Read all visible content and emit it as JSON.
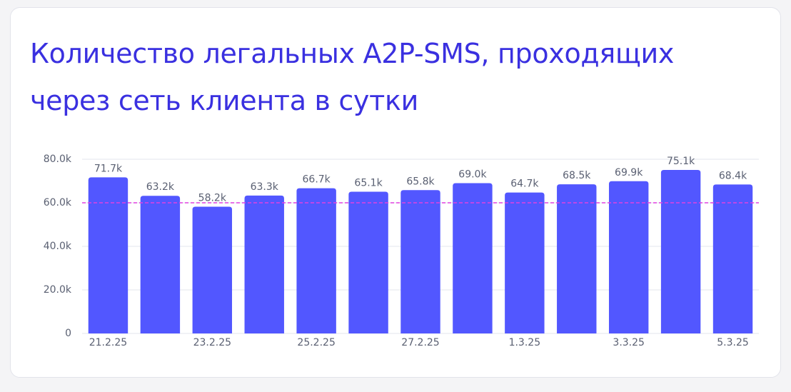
{
  "chart_data": {
    "type": "bar",
    "title": "Количество легальных A2P-SMS, проходящих через сеть клиента в сутки",
    "categories": [
      "21.2.25",
      null,
      "23.2.25",
      null,
      "25.2.25",
      null,
      "27.2.25",
      null,
      "1.3.25",
      null,
      "3.3.25",
      null,
      "5.3.25"
    ],
    "values": [
      71700,
      63200,
      58200,
      63300,
      66700,
      65100,
      65800,
      69000,
      64700,
      68500,
      69900,
      75100,
      68400
    ],
    "value_labels": [
      "71.7k",
      "63.2k",
      "58.2k",
      "63.3k",
      "66.7k",
      "65.1k",
      "65.8k",
      "69.0k",
      "64.7k",
      "68.5k",
      "69.9k",
      "75.1k",
      "68.4k"
    ],
    "color": "#5257ff",
    "ylim": [
      0,
      80000
    ],
    "yticks": [
      0,
      {
        "value": 20000,
        "label": "20.0k"
      },
      {
        "value": 40000,
        "label": "40.0k"
      },
      {
        "value": 60000,
        "label": "60.0k"
      },
      {
        "value": 80000,
        "label": "80.0k"
      }
    ],
    "grid": true,
    "reference_line": {
      "value": 60000,
      "color": "#e040e0"
    }
  }
}
